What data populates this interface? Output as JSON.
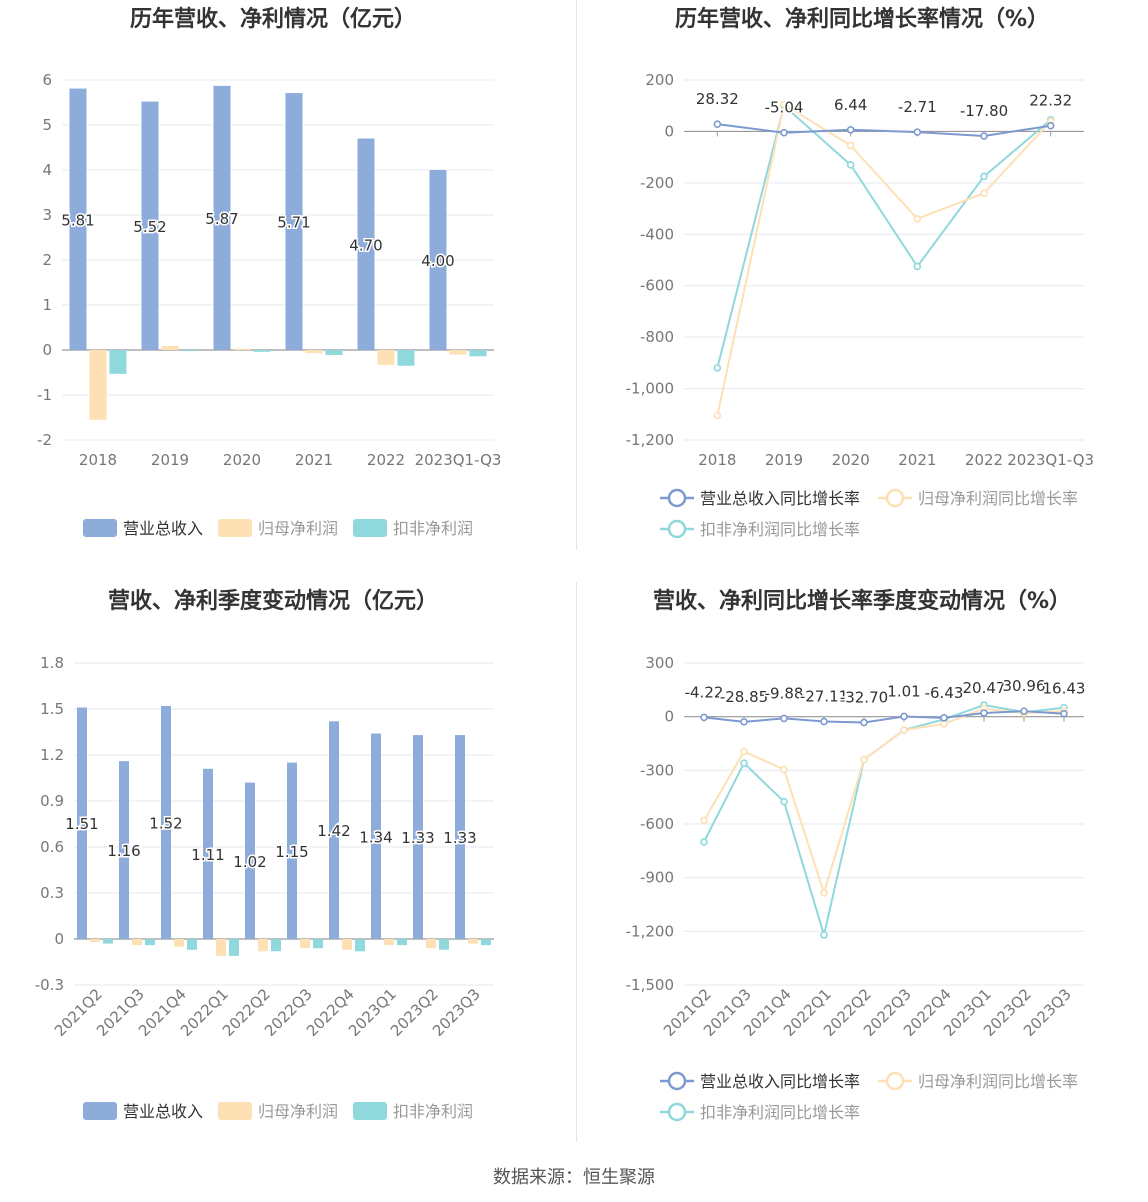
{
  "footer": "数据来源：恒生聚源",
  "colors": {
    "revenue": "#8eacda",
    "net_profit": "#fde0b4",
    "deducted_profit": "#8fd8dc",
    "grid": "#e6e9f1",
    "axis": "#999999",
    "title": "#333333",
    "tick": "#777777"
  },
  "chart_data": [
    {
      "id": "annual-bars",
      "type": "bar",
      "title": "历年营收、净利情况（亿元）",
      "categories": [
        "2018",
        "2019",
        "2020",
        "2021",
        "2022",
        "2023Q1-Q3"
      ],
      "ylim": [
        -2,
        6
      ],
      "yticks": [
        "6",
        "5",
        "4",
        "3",
        "2",
        "1",
        "0",
        "-1",
        "-2"
      ],
      "series": [
        {
          "name": "营业总收入",
          "values": [
            5.81,
            5.52,
            5.87,
            5.71,
            4.7,
            4.0
          ],
          "labels": [
            "5.81",
            "5.52",
            "5.87",
            "5.71",
            "4.70",
            "4.00"
          ]
        },
        {
          "name": "归母净利润",
          "values": [
            -1.55,
            0.09,
            0.03,
            -0.07,
            -0.33,
            -0.1
          ]
        },
        {
          "name": "扣非净利润",
          "values": [
            -0.53,
            -0.02,
            -0.04,
            -0.11,
            -0.35,
            -0.14
          ]
        }
      ],
      "legend": "bottom"
    },
    {
      "id": "annual-growth",
      "type": "line",
      "title": "历年营收、净利同比增长率情况（%）",
      "categories": [
        "2018",
        "2019",
        "2020",
        "2021",
        "2022",
        "2023Q1-Q3"
      ],
      "ylim": [
        -1200,
        200
      ],
      "yticks": [
        "200",
        "0",
        "-200",
        "-400",
        "-600",
        "-800",
        "-1,000",
        "-1,200"
      ],
      "series": [
        {
          "name": "营业总收入同比增长率",
          "values": [
            28.32,
            -5.04,
            6.44,
            -2.71,
            -17.8,
            22.32
          ],
          "labels": [
            "28.32",
            "-5.04",
            "6.44",
            "-2.71",
            "-17.80",
            "22.32"
          ]
        },
        {
          "name": "归母净利润同比增长率",
          "values": [
            -1105,
            105,
            -55,
            -340,
            -240,
            40
          ]
        },
        {
          "name": "扣非净利润同比增长率",
          "values": [
            -920,
            100,
            -130,
            -525,
            -175,
            45
          ]
        }
      ],
      "legend": "bottom"
    },
    {
      "id": "quarterly-bars",
      "type": "bar",
      "title": "营收、净利季度变动情况（亿元）",
      "categories": [
        "2021Q2",
        "2021Q3",
        "2021Q4",
        "2022Q1",
        "2022Q2",
        "2022Q3",
        "2022Q4",
        "2023Q1",
        "2023Q2",
        "2023Q3"
      ],
      "ylim": [
        -0.3,
        1.8
      ],
      "yticks": [
        "1.8",
        "1.5",
        "1.2",
        "0.9",
        "0.6",
        "0.3",
        "0",
        "-0.3"
      ],
      "series": [
        {
          "name": "营业总收入",
          "values": [
            1.51,
            1.16,
            1.52,
            1.11,
            1.02,
            1.15,
            1.42,
            1.34,
            1.33,
            1.33
          ],
          "labels": [
            "1.51",
            "1.16",
            "1.52",
            "1.11",
            "1.02",
            "1.15",
            "1.42",
            "1.34",
            "1.33",
            "1.33"
          ]
        },
        {
          "name": "归母净利润",
          "values": [
            -0.02,
            -0.04,
            -0.05,
            -0.11,
            -0.08,
            -0.06,
            -0.07,
            -0.04,
            -0.06,
            -0.03
          ]
        },
        {
          "name": "扣非净利润",
          "values": [
            -0.03,
            -0.04,
            -0.07,
            -0.11,
            -0.08,
            -0.06,
            -0.08,
            -0.04,
            -0.07,
            -0.04
          ]
        }
      ],
      "legend": "bottom"
    },
    {
      "id": "quarterly-growth",
      "type": "line",
      "title": "营收、净利同比增长率季度变动情况（%）",
      "categories": [
        "2021Q2",
        "2021Q3",
        "2021Q4",
        "2022Q1",
        "2022Q2",
        "2022Q3",
        "2022Q4",
        "2023Q1",
        "2023Q2",
        "2023Q3"
      ],
      "ylim": [
        -1500,
        300
      ],
      "yticks": [
        "300",
        "0",
        "-300",
        "-600",
        "-900",
        "-1,200",
        "-1,500"
      ],
      "series": [
        {
          "name": "营业总收入同比增长率",
          "values": [
            -4.22,
            -28.85,
            -9.88,
            -27.11,
            -32.7,
            1.01,
            -6.43,
            20.47,
            30.96,
            16.43
          ],
          "labels": [
            "-4.22",
            "-28.85",
            "-9.88",
            "-27.11",
            "-32.70",
            "1.01",
            "-6.43",
            "20.47",
            "30.96",
            "16.43"
          ]
        },
        {
          "name": "归母净利润同比增长率",
          "values": [
            -580,
            -195,
            -295,
            -985,
            -240,
            -75,
            -40,
            45,
            20,
            30
          ]
        },
        {
          "name": "扣非净利润同比增长率",
          "values": [
            -700,
            -260,
            -475,
            -1220,
            -240,
            -75,
            -15,
            65,
            25,
            50
          ]
        }
      ],
      "legend": "bottom"
    }
  ]
}
